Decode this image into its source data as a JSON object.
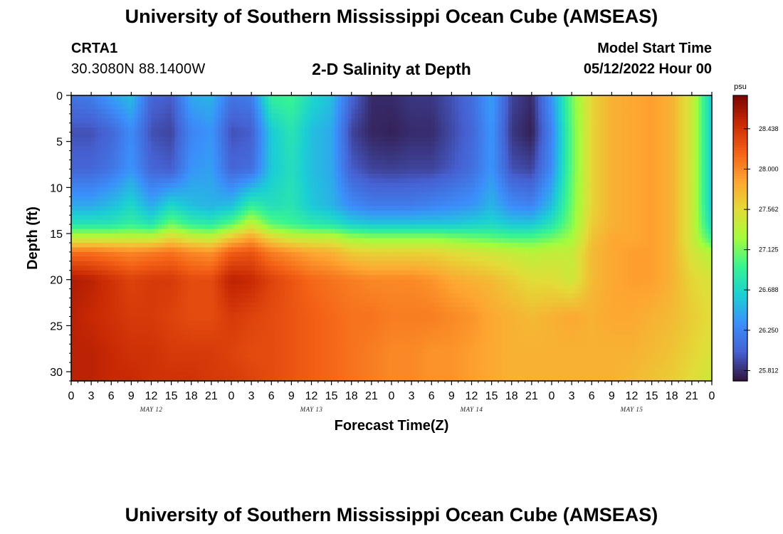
{
  "header": {
    "title": "University of Southern Mississippi Ocean Cube (AMSEAS)",
    "station_id": "CRTA1",
    "station_coords": "30.3080N  88.1400W",
    "plot_heading": "2-D Salinity at Depth",
    "model_start_label": "Model Start Time",
    "model_start_value": "05/12/2022 Hour 00"
  },
  "footer": {
    "title": "University of Southern Mississippi Ocean Cube (AMSEAS)"
  },
  "colors": {
    "low": "#30123b",
    "high": "#7a0403"
  },
  "chart_data": {
    "type": "heatmap",
    "title": "2-D Salinity at Depth",
    "xlabel": "Forecast Time(Z)",
    "ylabel": "Depth (ft)",
    "colorbar_unit": "psu",
    "colorbar_ticks": [
      28.438,
      28.0,
      27.562,
      27.125,
      26.688,
      26.25,
      25.812
    ],
    "clim": [
      25.7,
      28.8
    ],
    "x_hours": [
      0,
      3,
      6,
      9,
      12,
      15,
      18,
      21,
      24,
      27,
      30,
      33,
      36,
      39,
      42,
      45,
      48,
      51,
      54,
      57,
      60,
      63,
      66,
      69,
      72,
      75,
      78,
      81,
      84,
      87,
      90,
      93,
      96
    ],
    "x_tick_labels": [
      "0",
      "3",
      "6",
      "9",
      "12",
      "15",
      "18",
      "21",
      "0",
      "3",
      "6",
      "9",
      "12",
      "15",
      "18",
      "21",
      "0",
      "3",
      "6",
      "9",
      "12",
      "15",
      "18",
      "21",
      "0",
      "3",
      "6",
      "9",
      "12",
      "15",
      "18",
      "21",
      "0"
    ],
    "day_labels": [
      {
        "hour": 12,
        "label": "MAY 12"
      },
      {
        "hour": 36,
        "label": "MAY 13"
      },
      {
        "hour": 60,
        "label": "MAY 14"
      },
      {
        "hour": 84,
        "label": "MAY 15"
      }
    ],
    "xlim": [
      0,
      96
    ],
    "ylim": [
      0,
      31
    ],
    "y_tick_labels": [
      "0",
      "5",
      "10",
      "15",
      "20",
      "25",
      "30"
    ],
    "y_ticks": [
      0,
      5,
      10,
      15,
      20,
      25,
      30
    ],
    "depths": [
      0,
      4,
      8,
      12,
      14,
      15.5,
      17,
      20,
      24,
      28,
      31
    ],
    "salinity": [
      [
        26.15,
        26.2,
        26.4,
        26.55,
        26.05,
        26.0,
        26.45,
        26.5,
        26.15,
        26.2,
        26.9,
        26.95,
        26.7,
        26.55,
        26.05,
        25.8,
        25.8,
        25.85,
        25.85,
        25.95,
        26.1,
        26.4,
        25.9,
        25.8,
        26.35,
        27.1,
        27.6,
        27.8,
        27.85,
        27.9,
        27.8,
        27.45,
        26.6
      ],
      [
        25.95,
        25.95,
        26.05,
        26.3,
        25.95,
        25.9,
        26.25,
        26.35,
        25.95,
        26.0,
        26.6,
        26.8,
        26.55,
        26.45,
        25.9,
        25.78,
        25.76,
        25.8,
        25.8,
        25.92,
        26.05,
        26.35,
        25.85,
        25.75,
        26.25,
        27.05,
        27.6,
        27.8,
        27.85,
        27.9,
        27.8,
        27.45,
        26.6
      ],
      [
        26.05,
        26.05,
        26.15,
        26.35,
        26.05,
        26.0,
        26.35,
        26.4,
        26.05,
        26.1,
        26.6,
        26.75,
        26.55,
        26.45,
        26.0,
        25.9,
        25.88,
        25.9,
        25.9,
        25.98,
        26.1,
        26.35,
        25.95,
        25.9,
        26.3,
        27.05,
        27.6,
        27.8,
        27.85,
        27.9,
        27.8,
        27.45,
        26.6
      ],
      [
        26.45,
        26.45,
        26.55,
        26.7,
        26.45,
        26.7,
        26.55,
        26.5,
        26.55,
        26.9,
        26.75,
        26.8,
        26.6,
        26.5,
        26.3,
        26.2,
        26.2,
        26.2,
        26.25,
        26.3,
        26.35,
        26.5,
        26.3,
        26.25,
        26.55,
        27.1,
        27.6,
        27.8,
        27.85,
        27.9,
        27.8,
        27.45,
        26.6
      ],
      [
        26.8,
        26.8,
        26.8,
        26.9,
        26.8,
        27.1,
        26.9,
        26.85,
        27.05,
        27.4,
        27.05,
        26.95,
        26.85,
        26.8,
        26.65,
        26.6,
        26.6,
        26.6,
        26.6,
        26.6,
        26.65,
        26.7,
        26.6,
        26.6,
        26.8,
        27.15,
        27.65,
        27.8,
        27.85,
        27.9,
        27.8,
        27.45,
        26.7
      ],
      [
        27.4,
        27.4,
        27.4,
        27.4,
        27.4,
        27.6,
        27.45,
        27.4,
        27.7,
        27.9,
        27.6,
        27.45,
        27.4,
        27.4,
        27.25,
        27.2,
        27.2,
        27.2,
        27.2,
        27.15,
        27.1,
        27.05,
        27.0,
        27.0,
        27.1,
        27.25,
        27.7,
        27.85,
        27.85,
        27.9,
        27.8,
        27.45,
        26.9
      ],
      [
        28.1,
        28.1,
        28.05,
        28.0,
        28.05,
        28.1,
        28.0,
        27.95,
        28.2,
        28.25,
        28.05,
        27.95,
        27.85,
        27.8,
        27.65,
        27.6,
        27.6,
        27.6,
        27.6,
        27.55,
        27.5,
        27.45,
        27.4,
        27.35,
        27.4,
        27.4,
        27.75,
        27.85,
        27.9,
        27.9,
        27.8,
        27.5,
        27.3
      ],
      [
        28.6,
        28.55,
        28.45,
        28.35,
        28.4,
        28.4,
        28.3,
        28.3,
        28.55,
        28.5,
        28.35,
        28.25,
        28.15,
        28.1,
        28.05,
        28.0,
        28.0,
        28.0,
        27.95,
        27.85,
        27.8,
        27.75,
        27.65,
        27.55,
        27.55,
        27.45,
        27.75,
        27.85,
        27.9,
        27.9,
        27.8,
        27.6,
        27.5
      ],
      [
        28.55,
        28.5,
        28.45,
        28.4,
        28.4,
        28.35,
        28.3,
        28.3,
        28.4,
        28.35,
        28.3,
        28.25,
        28.2,
        28.15,
        28.1,
        28.1,
        28.05,
        28.05,
        28.05,
        28.0,
        27.95,
        27.85,
        27.8,
        27.75,
        27.8,
        27.85,
        27.8,
        27.85,
        27.85,
        27.8,
        27.75,
        27.65,
        27.55
      ],
      [
        28.55,
        28.55,
        28.5,
        28.45,
        28.45,
        28.4,
        28.4,
        28.4,
        28.35,
        28.3,
        28.3,
        28.25,
        28.2,
        28.15,
        28.1,
        28.05,
        28.0,
        28.0,
        27.95,
        27.95,
        27.9,
        27.85,
        27.8,
        27.8,
        27.8,
        27.8,
        27.8,
        27.8,
        27.8,
        27.75,
        27.7,
        27.6,
        27.5
      ],
      [
        28.55,
        28.55,
        28.5,
        28.5,
        28.45,
        28.45,
        28.45,
        28.4,
        28.4,
        28.35,
        28.3,
        28.25,
        28.2,
        28.15,
        28.1,
        28.05,
        28.0,
        28.0,
        27.95,
        27.95,
        27.9,
        27.85,
        27.8,
        27.8,
        27.8,
        27.8,
        27.8,
        27.8,
        27.75,
        27.7,
        27.65,
        27.55,
        27.45
      ]
    ]
  }
}
